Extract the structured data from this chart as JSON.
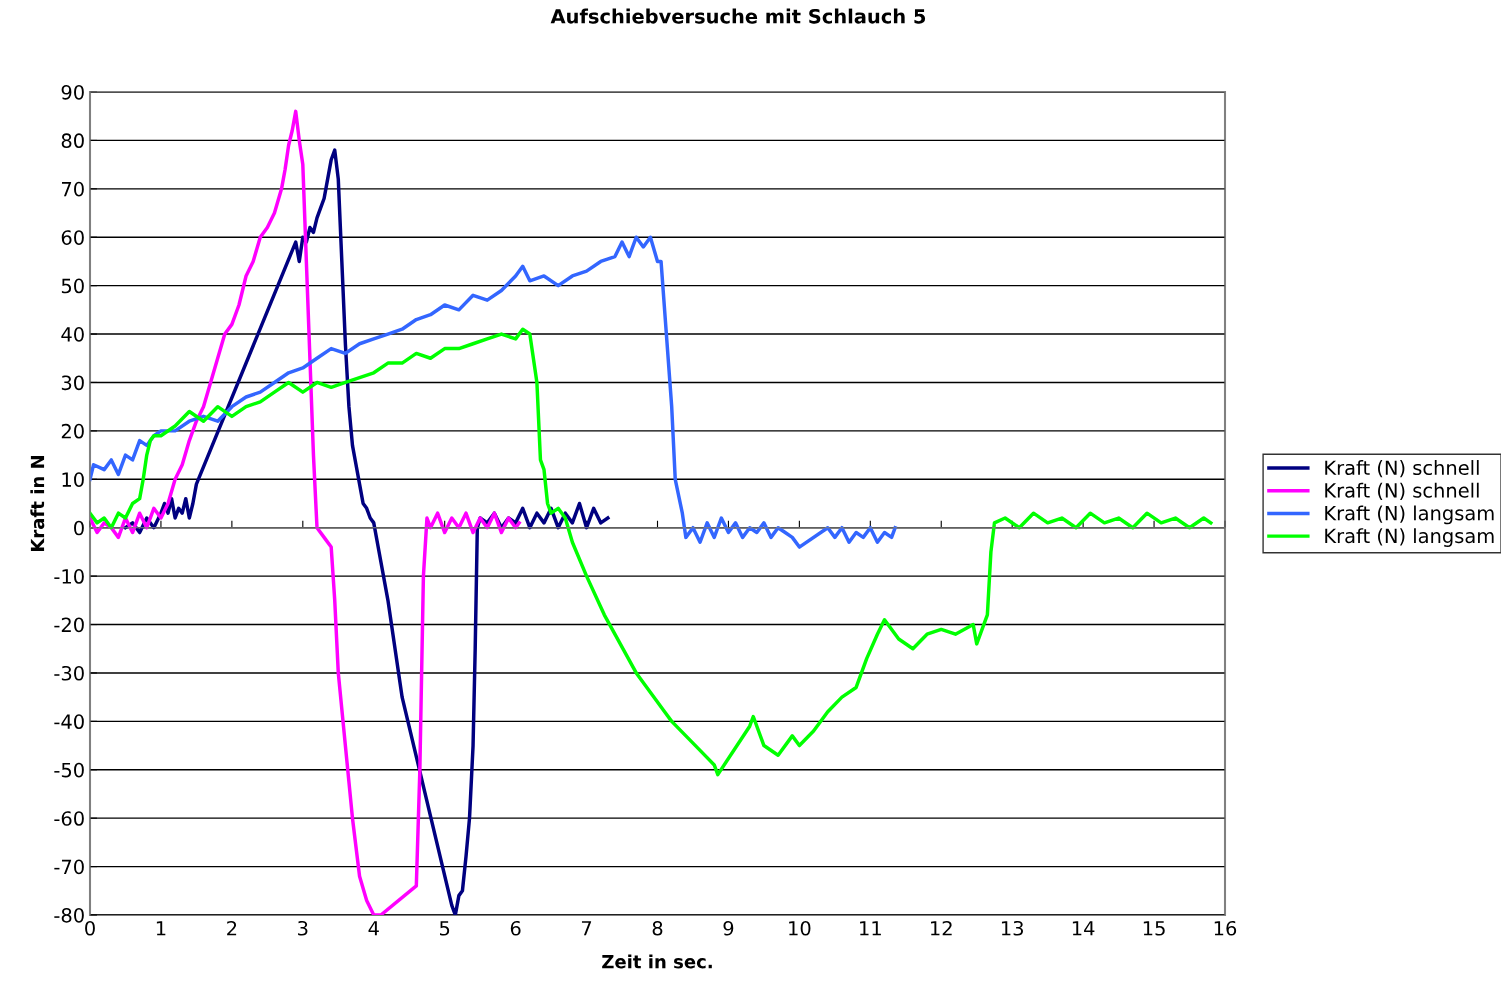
{
  "chart_data": {
    "type": "line",
    "title": "Aufschiebversuche mit Schlauch 5",
    "xlabel": "Zeit in sec.",
    "ylabel": "Kraft in N",
    "xlim": [
      0,
      16
    ],
    "xticks": [
      0,
      1,
      2,
      3,
      4,
      5,
      6,
      7,
      8,
      9,
      10,
      11,
      12,
      13,
      14,
      15,
      16
    ],
    "ylim": [
      -80,
      90
    ],
    "yticks": [
      -80,
      -70,
      -60,
      -50,
      -40,
      -30,
      -20,
      -10,
      0,
      10,
      20,
      30,
      40,
      50,
      60,
      70,
      80,
      90
    ],
    "grid": "y",
    "legend": "right",
    "marker": "none",
    "line_style": "solid",
    "series": [
      {
        "name": "Kraft (N) schnell",
        "color": "#000080",
        "x": [
          0.5,
          0.6,
          0.7,
          0.8,
          0.9,
          1.0,
          1.05,
          1.1,
          1.15,
          1.2,
          1.25,
          1.3,
          1.35,
          1.4,
          1.45,
          1.5,
          2.9,
          2.95,
          3.0,
          3.05,
          3.1,
          3.15,
          3.2,
          3.25,
          3.3,
          3.35,
          3.4,
          3.45,
          3.5,
          3.55,
          3.6,
          3.65,
          3.7,
          3.75,
          3.8,
          3.85,
          3.9,
          3.95,
          4.0,
          4.05,
          4.2,
          4.4,
          5.1,
          5.15,
          5.2,
          5.25,
          5.3,
          5.35,
          5.4,
          5.43,
          5.46,
          5.5,
          5.6,
          5.7,
          5.8,
          5.9,
          6.0,
          6.1,
          6.2,
          6.3,
          6.4,
          6.5,
          6.6,
          6.7,
          6.8,
          6.9,
          7.0,
          7.1,
          7.2,
          7.3
        ],
        "values": [
          0,
          1,
          -1,
          2,
          0,
          3,
          5,
          3,
          6,
          2,
          4,
          3,
          6,
          2,
          5,
          9,
          59,
          55,
          60,
          59,
          62,
          61,
          64,
          66,
          68,
          72,
          76,
          78,
          72,
          55,
          38,
          25,
          17,
          13,
          9,
          5,
          4,
          2,
          1,
          -3,
          -15,
          -35,
          -78,
          -80,
          -76,
          -75,
          -68,
          -60,
          -45,
          -25,
          0,
          2,
          1,
          3,
          0,
          2,
          1,
          4,
          0,
          3,
          1,
          4,
          0,
          3,
          1,
          5,
          0,
          4,
          1,
          2
        ]
      },
      {
        "name": "Kraft (N) schnell",
        "color": "#ff00ff",
        "x": [
          0,
          0.1,
          0.2,
          0.3,
          0.4,
          0.5,
          0.6,
          0.7,
          0.8,
          0.9,
          1.0,
          1.1,
          1.2,
          1.3,
          1.4,
          1.5,
          1.6,
          1.7,
          1.8,
          1.9,
          2.0,
          2.1,
          2.2,
          2.3,
          2.4,
          2.5,
          2.6,
          2.7,
          2.75,
          2.8,
          2.85,
          2.9,
          2.95,
          3.0,
          3.05,
          3.1,
          3.15,
          3.2,
          3.3,
          3.4,
          3.45,
          3.5,
          3.6,
          3.7,
          3.8,
          3.9,
          4.0,
          4.1,
          4.6,
          4.65,
          4.7,
          4.75,
          4.8,
          4.9,
          5.0,
          5.1,
          5.2,
          5.3,
          5.4,
          5.5,
          5.6,
          5.7,
          5.8,
          5.9,
          6.0,
          6.05
        ],
        "values": [
          2,
          -1,
          1,
          0,
          -2,
          2,
          -1,
          3,
          0,
          4,
          2,
          5,
          10,
          13,
          18,
          22,
          25,
          30,
          35,
          40,
          42,
          46,
          52,
          55,
          60,
          62,
          65,
          70,
          74,
          79,
          82,
          86,
          80,
          75,
          55,
          35,
          15,
          0,
          -2,
          -4,
          -15,
          -30,
          -45,
          -60,
          -72,
          -77,
          -80,
          -80,
          -74,
          -50,
          -10,
          2,
          0,
          3,
          -1,
          2,
          0,
          3,
          -1,
          2,
          0,
          3,
          -1,
          2,
          0,
          1
        ]
      },
      {
        "name": "Kraft (N) langsam",
        "color": "#3366ff",
        "x": [
          0,
          0.05,
          0.2,
          0.3,
          0.4,
          0.5,
          0.6,
          0.7,
          0.8,
          0.9,
          1.0,
          1.2,
          1.4,
          1.6,
          1.8,
          2.0,
          2.2,
          2.4,
          2.6,
          2.8,
          3.0,
          3.2,
          3.4,
          3.6,
          3.8,
          4.0,
          4.2,
          4.4,
          4.6,
          4.8,
          5.0,
          5.2,
          5.4,
          5.6,
          5.8,
          6.0,
          6.1,
          6.2,
          6.4,
          6.6,
          6.8,
          7.0,
          7.2,
          7.4,
          7.5,
          7.6,
          7.7,
          7.8,
          7.9,
          8.0,
          8.05,
          8.1,
          8.2,
          8.25,
          8.35,
          8.4,
          8.5,
          8.6,
          8.7,
          8.8,
          8.9,
          9.0,
          9.1,
          9.2,
          9.3,
          9.4,
          9.5,
          9.6,
          9.7,
          9.8,
          9.9,
          10.0,
          10.4,
          10.5,
          10.6,
          10.7,
          10.8,
          10.9,
          11.0,
          11.1,
          11.2,
          11.3,
          11.35
        ],
        "values": [
          10,
          13,
          12,
          14,
          11,
          15,
          14,
          18,
          17,
          19,
          20,
          20,
          22,
          23,
          22,
          25,
          27,
          28,
          30,
          32,
          33,
          35,
          37,
          36,
          38,
          39,
          40,
          41,
          43,
          44,
          46,
          45,
          48,
          47,
          49,
          52,
          54,
          51,
          52,
          50,
          52,
          53,
          55,
          56,
          59,
          56,
          60,
          58,
          60,
          55,
          55,
          45,
          25,
          10,
          3,
          -2,
          0,
          -3,
          1,
          -2,
          2,
          -1,
          1,
          -2,
          0,
          -1,
          1,
          -2,
          0,
          -1,
          -2,
          -4,
          0,
          -2,
          0,
          -3,
          -1,
          -2,
          0,
          -3,
          -1,
          -2,
          0
        ]
      },
      {
        "name": "Kraft (N) langsam",
        "color": "#00ff00",
        "x": [
          0,
          0.1,
          0.2,
          0.3,
          0.4,
          0.5,
          0.6,
          0.7,
          0.75,
          0.8,
          0.85,
          0.9,
          1.0,
          1.2,
          1.4,
          1.6,
          1.8,
          2.0,
          2.2,
          2.4,
          2.6,
          2.8,
          3.0,
          3.2,
          3.4,
          3.6,
          3.8,
          4.0,
          4.2,
          4.4,
          4.6,
          4.8,
          5.0,
          5.2,
          5.4,
          5.6,
          5.8,
          6.0,
          6.1,
          6.2,
          6.25,
          6.3,
          6.35,
          6.4,
          6.45,
          6.5,
          6.6,
          6.7,
          6.8,
          7.0,
          7.25,
          7.7,
          8.1,
          8.2,
          8.4,
          8.6,
          8.8,
          8.85,
          9.3,
          9.35,
          9.5,
          9.7,
          9.9,
          10.0,
          10.2,
          10.4,
          10.6,
          10.8,
          10.95,
          11.1,
          11.2,
          11.4,
          11.6,
          11.8,
          12.0,
          12.2,
          12.45,
          12.5,
          12.65,
          12.7,
          12.75,
          12.9,
          13.1,
          13.3,
          13.5,
          13.7,
          13.9,
          14.1,
          14.3,
          14.5,
          14.7,
          14.9,
          15.1,
          15.3,
          15.5,
          15.7,
          15.8
        ],
        "values": [
          3,
          1,
          2,
          0,
          3,
          2,
          5,
          6,
          10,
          15,
          18,
          19,
          19,
          21,
          24,
          22,
          25,
          23,
          25,
          26,
          28,
          30,
          28,
          30,
          29,
          30,
          31,
          32,
          34,
          34,
          36,
          35,
          37,
          37,
          38,
          39,
          40,
          39,
          41,
          40,
          35,
          30,
          14,
          12,
          5,
          3,
          4,
          2,
          -3,
          -10,
          -18,
          -30,
          -38,
          -40,
          -43,
          -46,
          -49,
          -51,
          -41,
          -39,
          -45,
          -47,
          -43,
          -45,
          -42,
          -38,
          -35,
          -33,
          -27,
          -22,
          -19,
          -23,
          -25,
          -22,
          -21,
          -22,
          -20,
          -24,
          -18,
          -5,
          1,
          2,
          0,
          3,
          1,
          2,
          0,
          3,
          1,
          2,
          0,
          3,
          1,
          2,
          0,
          2,
          1
        ]
      }
    ]
  }
}
